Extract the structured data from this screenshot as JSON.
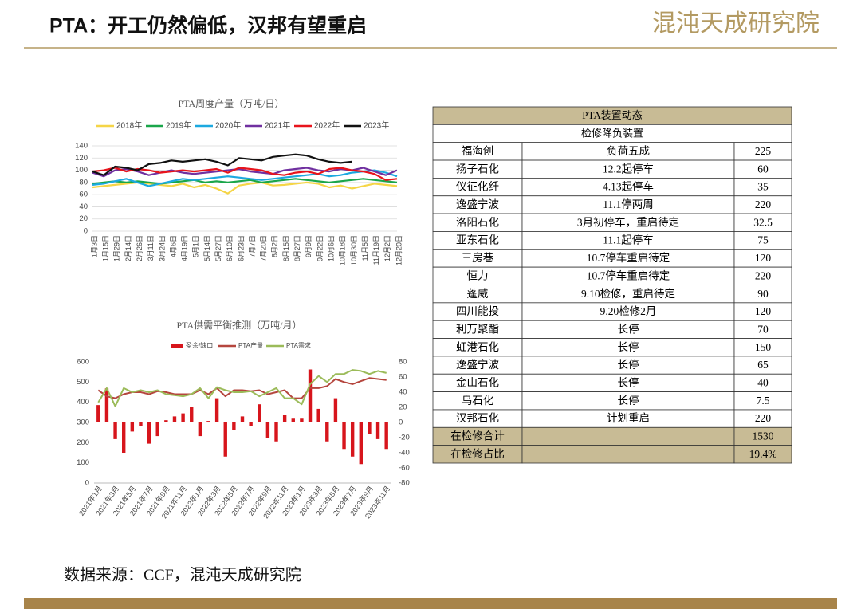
{
  "header": {
    "title": "PTA：开工仍然偏低，汉邦有望重启",
    "logo": "混沌天成研究院"
  },
  "footer": {
    "source": "数据来源：CCF，混沌天成研究院"
  },
  "table": {
    "header": "PTA装置动态",
    "subheader": "检修降负装置",
    "rows": [
      [
        "福海创",
        "负荷五成",
        "225"
      ],
      [
        "扬子石化",
        "12.2起停车",
        "60"
      ],
      [
        "仪征化纤",
        "4.13起停车",
        "35"
      ],
      [
        "逸盛宁波",
        "11.1停两周",
        "220"
      ],
      [
        "洛阳石化",
        "3月初停车，重启待定",
        "32.5"
      ],
      [
        "亚东石化",
        "11.1起停车",
        "75"
      ],
      [
        "三房巷",
        "10.7停车重启待定",
        "120"
      ],
      [
        "恒力",
        "10.7停车重启待定",
        "220"
      ],
      [
        "蓬威",
        "9.10检修，重启待定",
        "90"
      ],
      [
        "四川能投",
        "9.20检修2月",
        "120"
      ],
      [
        "利万聚酯",
        "长停",
        "70"
      ],
      [
        "虹港石化",
        "长停",
        "150"
      ],
      [
        "逸盛宁波",
        "长停",
        "65"
      ],
      [
        "金山石化",
        "长停",
        "40"
      ],
      [
        "乌石化",
        "长停",
        "7.5"
      ],
      [
        "汉邦石化",
        "计划重启",
        "220"
      ],
      [
        "在检修合计",
        null,
        "1530"
      ],
      [
        "在检修占比",
        null,
        "19.4%"
      ]
    ]
  },
  "chart_data": [
    {
      "type": "line",
      "title": "PTA周度产量（万吨/日）",
      "categories": [
        "1月3日",
        "1月15日",
        "1月29日",
        "2月14日",
        "2月26日",
        "3月11日",
        "3月24日",
        "4月6日",
        "4月19日",
        "5月1日",
        "5月14日",
        "5月27日",
        "6月10日",
        "6月23日",
        "7月7日",
        "7月20日",
        "8月2日",
        "8月15日",
        "8月27日",
        "9月9日",
        "9月22日",
        "10月6日",
        "10月18日",
        "10月30日",
        "11月5日",
        "11月19日",
        "12月2日",
        "12月20日"
      ],
      "series": [
        {
          "name": "2018年",
          "color": "#f5d547",
          "values": [
            72,
            74,
            76,
            78,
            80,
            78,
            76,
            74,
            78,
            72,
            76,
            70,
            62,
            75,
            78,
            80,
            75,
            76,
            78,
            80,
            78,
            72,
            75,
            70,
            74,
            78,
            76,
            74
          ]
        },
        {
          "name": "2019年",
          "color": "#1aa64a",
          "values": [
            78,
            80,
            82,
            80,
            82,
            80,
            78,
            80,
            82,
            84,
            80,
            82,
            80,
            82,
            84,
            80,
            82,
            84,
            86,
            84,
            82,
            80,
            82,
            84,
            86,
            84,
            82,
            80
          ]
        },
        {
          "name": "2020年",
          "color": "#1ca9e0",
          "values": [
            76,
            78,
            82,
            86,
            80,
            74,
            78,
            82,
            86,
            84,
            86,
            88,
            90,
            88,
            86,
            84,
            86,
            88,
            90,
            92,
            94,
            90,
            92,
            96,
            98,
            100,
            96,
            90
          ]
        },
        {
          "name": "2021年",
          "color": "#7030a0",
          "values": [
            96,
            90,
            100,
            102,
            98,
            92,
            96,
            100,
            96,
            94,
            96,
            98,
            100,
            102,
            98,
            96,
            94,
            100,
            102,
            104,
            100,
            98,
            102,
            100,
            104,
            98,
            92,
            100
          ]
        },
        {
          "name": "2022年",
          "color": "#e8141c",
          "values": [
            98,
            100,
            104,
            98,
            102,
            100,
            96,
            98,
            100,
            98,
            100,
            102,
            96,
            104,
            102,
            100,
            94,
            92,
            96,
            98,
            94,
            102,
            104,
            100,
            98,
            94,
            84,
            86
          ]
        },
        {
          "name": "2023年",
          "color": "#111111",
          "values": [
            98,
            92,
            106,
            104,
            100,
            110,
            112,
            116,
            114,
            116,
            118,
            114,
            108,
            120,
            118,
            116,
            122,
            124,
            126,
            124,
            118,
            114,
            112,
            114,
            null,
            null,
            null,
            null
          ]
        }
      ],
      "ylim": [
        0,
        140
      ],
      "yticks": [
        0,
        20,
        40,
        60,
        80,
        100,
        120,
        140
      ],
      "grid": true
    },
    {
      "type": "combo",
      "title": "PTA供需平衡推测（万吨/月）",
      "categories": [
        "2021年1月",
        null,
        "2021年3月",
        null,
        "2021年5月",
        null,
        "2021年7月",
        null,
        "2021年9月",
        null,
        "2021年11月",
        null,
        "2022年1月",
        null,
        "2022年3月",
        null,
        "2022年5月",
        null,
        "2022年7月",
        null,
        "2022年9月",
        null,
        "2022年11月",
        null,
        "2023年1月",
        null,
        "2023年3月",
        null,
        "2023年5月",
        null,
        "2023年7月",
        null,
        "2023年9月",
        null,
        "2023年11月"
      ],
      "series": [
        {
          "name": "盈余/缺口",
          "color": "#d7151c",
          "axis": "y2",
          "kind": "bar",
          "values": [
            23,
            45,
            -22,
            -40,
            -12,
            -5,
            -28,
            -18,
            3,
            8,
            12,
            20,
            -18,
            2,
            32,
            -45,
            -10,
            8,
            -5,
            24,
            -20,
            -25,
            10,
            5,
            5,
            70,
            18,
            -25,
            32,
            -35,
            -45,
            -55,
            -15,
            -22,
            -35
          ]
        },
        {
          "name": "PTA产量",
          "color": "#b5463e",
          "kind": "line",
          "values": [
            460,
            430,
            420,
            440,
            450,
            450,
            440,
            455,
            450,
            440,
            440,
            440,
            460,
            440,
            470,
            430,
            460,
            460,
            455,
            460,
            440,
            450,
            460,
            420,
            420,
            470,
            470,
            480,
            515,
            500,
            490,
            505,
            520,
            515,
            510
          ]
        },
        {
          "name": "PTA需求",
          "color": "#9bbb59",
          "kind": "line",
          "values": [
            400,
            470,
            380,
            470,
            450,
            460,
            450,
            460,
            440,
            435,
            430,
            440,
            470,
            420,
            475,
            460,
            450,
            450,
            455,
            430,
            450,
            470,
            420,
            420,
            390,
            490,
            530,
            500,
            540,
            540,
            560,
            555,
            540,
            555,
            545
          ]
        }
      ],
      "ylim": [
        0,
        600
      ],
      "yticks": [
        0,
        100,
        200,
        300,
        400,
        500,
        600
      ],
      "y2lim": [
        -80,
        80
      ],
      "y2ticks": [
        -80,
        -60,
        -40,
        -20,
        0,
        20,
        40,
        60,
        80
      ],
      "grid": false
    }
  ]
}
